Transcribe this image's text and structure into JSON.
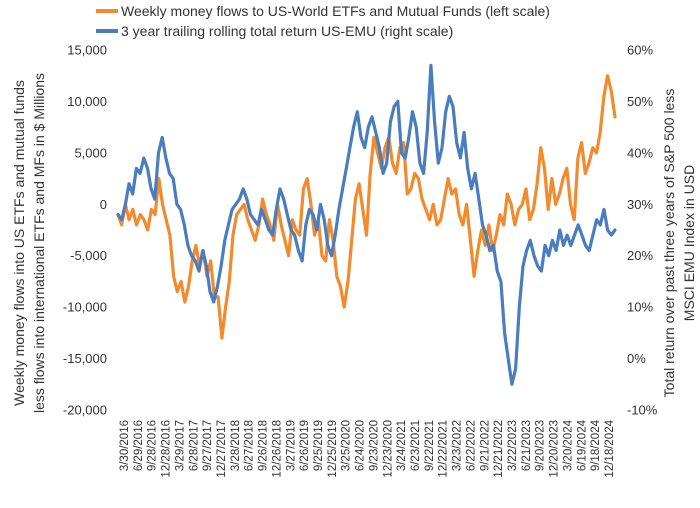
{
  "chart_data": {
    "type": "line",
    "legend": [
      {
        "label": "Weekly money flows to US-World ETFs and Mutual Funds (left scale)",
        "color": "#F28A2E",
        "series": "flows"
      },
      {
        "label": "3 year trailing rolling total return US-EMU (right scale)",
        "color": "#4A7DBF",
        "series": "rel_return"
      }
    ],
    "left_axis": {
      "title_line1": "Weekly money flows into US ETFs and mutual funds",
      "title_line2": "less flows into international ETFs and MFs in $ Millions",
      "ticks": [
        "15,000",
        "10,000",
        "5,000",
        "0",
        "-5,000",
        "-10,000",
        "-15,000",
        "-20,000"
      ],
      "ylim": [
        -20000,
        15000
      ]
    },
    "right_axis": {
      "title_line1": "Total return over past three years of S&P 500 less",
      "title_line2": "MSCI EMU Index in USD",
      "ticks": [
        "60%",
        "50%",
        "40%",
        "30%",
        "20%",
        "10%",
        "0%",
        "-10%"
      ],
      "ylim": [
        -10,
        60
      ]
    },
    "x_ticks": [
      "3/30/2016",
      "6/29/2016",
      "9/28/2016",
      "12/28/2016",
      "3/29/2017",
      "6/28/2017",
      "9/27/2017",
      "12/27/2017",
      "3/28/2018",
      "6/27/2018",
      "9/26/2018",
      "12/26/2018",
      "3/27/2019",
      "6/26/2019",
      "9/25/2019",
      "12/25/2019",
      "3/25/2020",
      "6/24/2020",
      "9/23/2020",
      "12/23/2020",
      "3/24/2021",
      "6/23/2021",
      "9/22/2021",
      "12/22/2021",
      "3/23/2022",
      "6/22/2022",
      "9/21/2022",
      "12/21/2022",
      "3/22/2023",
      "6/21/2023",
      "9/20/2023",
      "12/20/2023",
      "3/20/2024",
      "6/19/2024",
      "9/18/2024",
      "12/18/2024"
    ],
    "series": [
      {
        "key": "flows",
        "axis": "left",
        "color": "#F28A2E",
        "values": [
          -1000,
          -2000,
          0,
          -1500,
          -500,
          -2000,
          -1000,
          -1500,
          -2500,
          -500,
          -1000,
          2500,
          0,
          -1500,
          -3000,
          -7000,
          -8500,
          -7500,
          -9500,
          -8000,
          -5500,
          -4000,
          -6000,
          -4500,
          -7000,
          -5500,
          -9000,
          -9000,
          -13000,
          -10000,
          -7500,
          -3000,
          -1000,
          -500,
          0,
          -1500,
          -2500,
          -3500,
          -2000,
          500,
          -1000,
          -2000,
          -3500,
          0,
          -2000,
          -3500,
          -5000,
          -1500,
          -2500,
          -3000,
          1500,
          2500,
          0,
          -3000,
          -1500,
          -5000,
          -5500,
          -1500,
          -3500,
          -7000,
          -8000,
          -10000,
          -7500,
          -3500,
          500,
          2000,
          -500,
          -3000,
          3000,
          6500,
          5000,
          3500,
          5500,
          6500,
          4000,
          3000,
          5500,
          6000,
          1000,
          1500,
          3000,
          2500,
          500,
          -500,
          -1500,
          0,
          -2000,
          -1500,
          500,
          2500,
          1000,
          1500,
          -1000,
          -2000,
          0,
          -3500,
          -7000,
          -4500,
          -2500,
          -4000,
          -2000,
          -4500,
          -3000,
          -1000,
          -2000,
          1000,
          0,
          -2000,
          -500,
          0,
          1500,
          -1500,
          -500,
          2000,
          5500,
          3500,
          -500,
          2500,
          0,
          1000,
          2500,
          3500,
          0,
          -1500,
          4500,
          6000,
          3000,
          4000,
          5500,
          5000,
          7000,
          10500,
          12500,
          11000,
          8500
        ]
      },
      {
        "key": "rel_return",
        "axis": "right",
        "color": "#4A7DBF",
        "values": [
          28,
          27,
          30,
          34,
          32,
          37,
          36,
          39,
          37,
          33,
          31,
          40,
          43,
          39,
          36,
          35,
          30,
          29,
          26,
          22,
          20,
          19,
          17,
          21,
          18,
          13,
          11,
          14,
          18,
          23,
          26,
          29,
          30,
          31,
          33,
          31,
          28,
          27,
          26,
          29,
          27,
          25,
          24,
          29,
          33,
          31,
          28,
          25,
          24,
          21,
          19,
          26,
          29,
          28,
          25,
          30,
          27,
          22,
          20,
          24,
          29,
          33,
          37,
          41,
          45,
          48,
          43,
          41,
          45,
          47,
          44,
          41,
          36,
          38,
          46,
          49,
          50,
          40,
          39,
          43,
          48,
          45,
          38,
          36,
          44,
          57,
          46,
          38,
          41,
          48,
          51,
          49,
          42,
          39,
          44,
          37,
          33,
          36,
          31,
          26,
          24,
          21,
          22,
          17,
          15,
          5,
          0,
          -5,
          -2,
          10,
          18,
          21,
          23,
          20,
          18,
          17,
          22,
          20,
          23,
          21,
          25,
          22,
          24,
          22,
          24,
          26,
          24,
          22,
          21,
          24,
          27,
          26,
          29,
          25,
          24,
          25
        ]
      }
    ]
  }
}
